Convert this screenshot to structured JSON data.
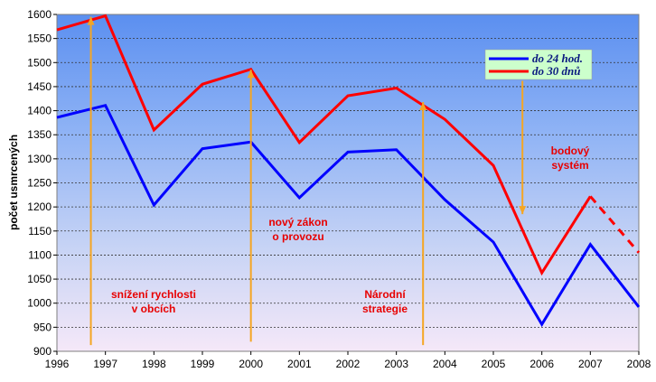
{
  "chart_data": {
    "type": "line",
    "title": "",
    "xlabel": "",
    "ylabel": "počet usmrcených",
    "x": [
      "1996",
      "1997",
      "1998",
      "1999",
      "2000",
      "2001",
      "2002",
      "2003",
      "2004",
      "2005",
      "2006",
      "2007",
      "2008"
    ],
    "ylim": [
      900,
      1600
    ],
    "yticks": [
      900,
      950,
      1000,
      1050,
      1100,
      1150,
      1200,
      1250,
      1300,
      1350,
      1400,
      1450,
      1500,
      1550,
      1600
    ],
    "grid": true,
    "legend_position": "top-right",
    "series": [
      {
        "name": "do 24 hod.",
        "color": "#0000ff",
        "values": [
          1386,
          1411,
          1204,
          1321,
          1335,
          1219,
          1314,
          1319,
          1215,
          1127,
          956,
          1122,
          992
        ]
      },
      {
        "name": "do 30 dnů",
        "color": "#ff0000",
        "values": [
          1568,
          1597,
          1360,
          1455,
          1486,
          1334,
          1431,
          1447,
          1382,
          1286,
          1063,
          1222,
          1105
        ],
        "dashed_from_index": 11
      }
    ],
    "annotations": [
      {
        "lines": [
          "snížení rychlosti",
          "v obcích"
        ],
        "x": 1996.7,
        "y_from": 913,
        "y_to": 1595
      },
      {
        "lines": [
          "nový zákon",
          "o provozu"
        ],
        "x": 2000.0,
        "y_from": 920,
        "y_to": 1485
      },
      {
        "lines": [
          "Národní",
          "strategie"
        ],
        "x": 2003.55,
        "y_from": 913,
        "y_to": 1418
      },
      {
        "lines": [
          "bodový",
          "systém"
        ],
        "x": 2005.6,
        "y_from": 1462,
        "y_to": 1185
      }
    ]
  }
}
